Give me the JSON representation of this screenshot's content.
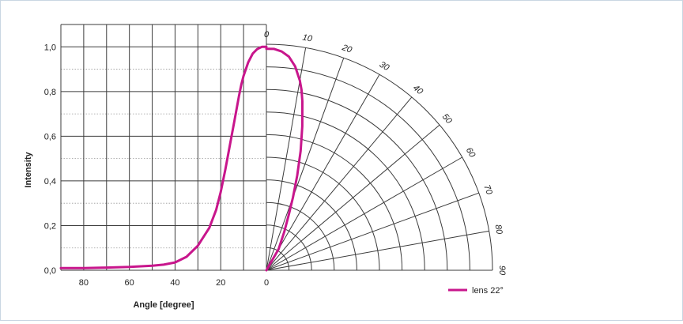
{
  "chart_data": {
    "type": "line",
    "chart_kind": "polar-and-cartesian light distribution",
    "xlabel": "Angle [degree]",
    "ylabel": "Intensity",
    "xlim": [
      90,
      0
    ],
    "ylim": [
      0,
      1.1
    ],
    "grid": true,
    "y_ticks": [
      "0,0",
      "0,2",
      "0,4",
      "0,6",
      "0,8",
      "1,0"
    ],
    "x_ticks": [
      "80",
      "60",
      "40",
      "20",
      "0"
    ],
    "angle_labels": [
      "0",
      "10",
      "20",
      "30",
      "40",
      "50",
      "60",
      "70",
      "80",
      "90"
    ],
    "angle_values": [
      0,
      10,
      20,
      30,
      40,
      50,
      60,
      70,
      80,
      90
    ],
    "y_tick_values": [
      0,
      0.2,
      0.4,
      0.6,
      0.8,
      1.0
    ],
    "x_tick_values": [
      80,
      60,
      40,
      20,
      0
    ],
    "legend_position": "bottom-right",
    "series": [
      {
        "name": "lens 22°",
        "color": "#c8168c",
        "x": [
          90,
          80,
          70,
          60,
          50,
          45,
          40,
          35,
          30,
          25,
          22,
          20,
          18,
          16,
          14,
          12,
          11,
          10,
          8,
          6,
          4,
          2,
          0
        ],
        "y": [
          0.01,
          0.01,
          0.012,
          0.015,
          0.02,
          0.025,
          0.035,
          0.06,
          0.11,
          0.19,
          0.27,
          0.35,
          0.45,
          0.56,
          0.67,
          0.78,
          0.83,
          0.87,
          0.93,
          0.97,
          0.99,
          1.0,
          1.0
        ]
      }
    ]
  }
}
